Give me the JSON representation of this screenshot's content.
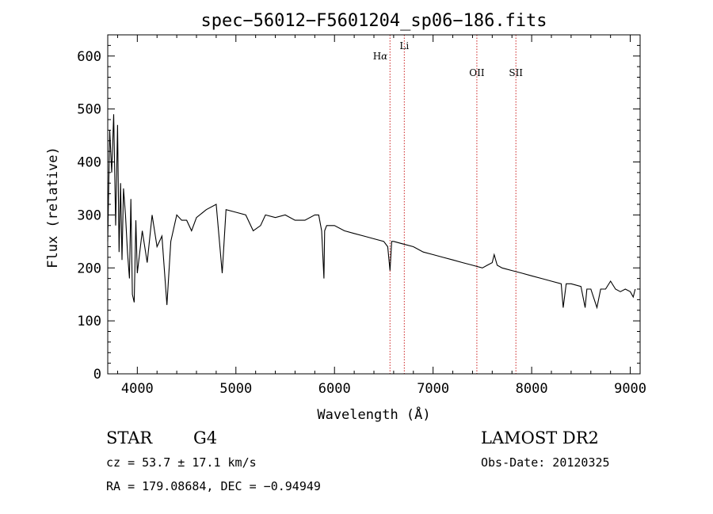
{
  "chart_data": {
    "type": "line",
    "title": "spec−56012−F5601204_sp06−186.fits",
    "xlabel": "Wavelength (Å)",
    "ylabel": "Flux (relative)",
    "xlim": [
      3700,
      9100
    ],
    "ylim": [
      0,
      640
    ],
    "xticks": [
      4000,
      5000,
      6000,
      7000,
      8000,
      9000
    ],
    "yticks": [
      0,
      100,
      200,
      300,
      400,
      500,
      600
    ],
    "series": [
      {
        "x": [
          3700,
          3720,
          3740,
          3760,
          3780,
          3800,
          3815,
          3830,
          3845,
          3860,
          3880,
          3900,
          3920,
          3935,
          3950,
          3968,
          3985,
          4000,
          4050,
          4100,
          4150,
          4200,
          4250,
          4300,
          4340,
          4400,
          4450,
          4500,
          4550,
          4600,
          4700,
          4800,
          4861,
          4900,
          5000,
          5100,
          5175,
          5250,
          5300,
          5400,
          5500,
          5600,
          5700,
          5800,
          5840,
          5870,
          5880,
          5893,
          5900,
          5920,
          5950,
          6000,
          6100,
          6200,
          6300,
          6400,
          6500,
          6540,
          6563,
          6580,
          6600,
          6700,
          6800,
          6900,
          7000,
          7100,
          7200,
          7300,
          7400,
          7500,
          7550,
          7600,
          7620,
          7650,
          7700,
          7800,
          7900,
          8000,
          8100,
          8200,
          8300,
          8320,
          8350,
          8400,
          8500,
          8542,
          8560,
          8600,
          8662,
          8700,
          8750,
          8800,
          8850,
          8900,
          8950,
          9000,
          9030,
          9050
        ],
        "y": [
          250,
          460,
          380,
          490,
          280,
          470,
          230,
          360,
          215,
          350,
          300,
          230,
          180,
          330,
          150,
          135,
          290,
          190,
          270,
          210,
          300,
          240,
          260,
          130,
          250,
          300,
          290,
          290,
          270,
          295,
          310,
          320,
          190,
          310,
          305,
          300,
          270,
          280,
          300,
          295,
          300,
          290,
          290,
          300,
          300,
          270,
          230,
          180,
          270,
          280,
          280,
          280,
          270,
          265,
          260,
          255,
          250,
          240,
          195,
          250,
          250,
          245,
          240,
          230,
          225,
          220,
          215,
          210,
          205,
          200,
          205,
          210,
          225,
          205,
          200,
          195,
          190,
          185,
          180,
          175,
          170,
          125,
          170,
          170,
          165,
          125,
          160,
          160,
          125,
          160,
          160,
          175,
          160,
          155,
          160,
          155,
          145,
          160
        ]
      }
    ],
    "lines": [
      {
        "label_main": "H",
        "label_sub": "α",
        "x": 6563
      },
      {
        "label_main": "Li",
        "label_sub": "",
        "x": 6708
      },
      {
        "label_main": "OII",
        "label_sub": "",
        "x": 7444
      },
      {
        "label_main": "SII",
        "label_sub": "",
        "x": 7840
      }
    ],
    "line_color": "#cc2222",
    "series_color": "#000000"
  },
  "info": {
    "object_class": "STAR",
    "subclass": "G4",
    "survey": "LAMOST DR2",
    "redshift": "cz = 53.7 ± 17.1 km/s",
    "obs_date": "Obs-Date: 20120325",
    "coords": "RA = 179.08684, DEC =  −0.94949"
  }
}
